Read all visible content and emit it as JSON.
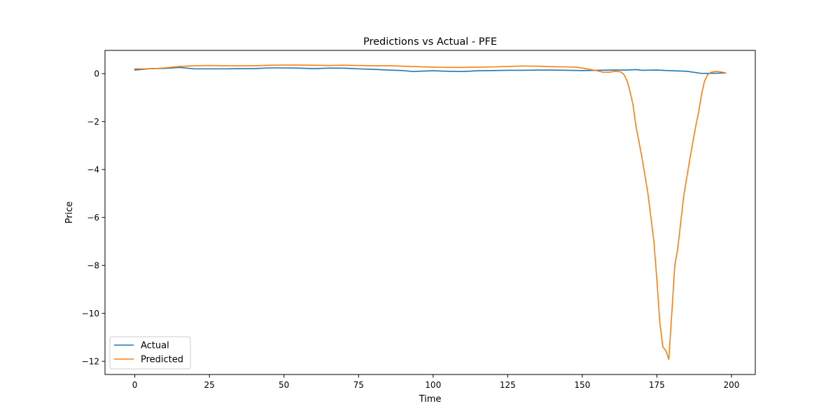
{
  "chart_data": {
    "type": "line",
    "title": "Predictions vs Actual - PFE",
    "xlabel": "Time",
    "ylabel": "Price",
    "xlim": [
      -10,
      208
    ],
    "ylim": [
      -12.55,
      0.97
    ],
    "xticks": [
      0,
      25,
      50,
      75,
      100,
      125,
      150,
      175,
      200
    ],
    "yticks": [
      -12,
      -10,
      -8,
      -6,
      -4,
      -2,
      0
    ],
    "grid": false,
    "legend_position": "lower-left",
    "series": [
      {
        "name": "Actual",
        "color": "#1f77b4",
        "x": [
          0,
          5,
          10,
          15,
          20,
          25,
          30,
          35,
          40,
          45,
          50,
          55,
          60,
          65,
          70,
          75,
          80,
          85,
          90,
          93,
          95,
          100,
          105,
          110,
          115,
          120,
          125,
          130,
          135,
          140,
          145,
          150,
          155,
          160,
          165,
          168,
          170,
          175,
          180,
          185,
          190,
          195,
          198
        ],
        "values": [
          0.15,
          0.21,
          0.22,
          0.26,
          0.2,
          0.2,
          0.2,
          0.21,
          0.21,
          0.24,
          0.24,
          0.23,
          0.21,
          0.23,
          0.23,
          0.2,
          0.18,
          0.15,
          0.13,
          0.09,
          0.1,
          0.12,
          0.1,
          0.09,
          0.12,
          0.13,
          0.14,
          0.14,
          0.15,
          0.15,
          0.14,
          0.13,
          0.14,
          0.15,
          0.15,
          0.17,
          0.14,
          0.15,
          0.12,
          0.1,
          0.01,
          0.02,
          0.03
        ]
      },
      {
        "name": "Predicted",
        "color": "#ff7f0e",
        "x": [
          0,
          5,
          10,
          15,
          20,
          25,
          30,
          35,
          40,
          45,
          50,
          55,
          60,
          65,
          70,
          75,
          80,
          85,
          90,
          95,
          100,
          105,
          110,
          115,
          120,
          125,
          130,
          135,
          140,
          145,
          148,
          150,
          152,
          155,
          157,
          159,
          161,
          163,
          164,
          165,
          166,
          167,
          168,
          170,
          172,
          174,
          175,
          176,
          177,
          178,
          179,
          180,
          181,
          182,
          184,
          186,
          188,
          189,
          190,
          191,
          192,
          193,
          194,
          195,
          196,
          197,
          198
        ],
        "values": [
          0.2,
          0.2,
          0.24,
          0.3,
          0.33,
          0.34,
          0.33,
          0.33,
          0.33,
          0.35,
          0.36,
          0.36,
          0.35,
          0.34,
          0.35,
          0.34,
          0.33,
          0.33,
          0.31,
          0.29,
          0.27,
          0.26,
          0.26,
          0.27,
          0.28,
          0.3,
          0.32,
          0.31,
          0.29,
          0.28,
          0.27,
          0.23,
          0.19,
          0.12,
          0.06,
          0.06,
          0.1,
          0.07,
          -0.05,
          -0.3,
          -0.75,
          -1.3,
          -2.2,
          -3.5,
          -5.0,
          -7.0,
          -8.6,
          -10.4,
          -11.4,
          -11.55,
          -11.92,
          -10.0,
          -8.0,
          -7.3,
          -5.1,
          -3.6,
          -2.2,
          -1.6,
          -0.85,
          -0.3,
          -0.05,
          0.05,
          0.08,
          0.1,
          0.08,
          0.06,
          0.03
        ]
      }
    ]
  }
}
